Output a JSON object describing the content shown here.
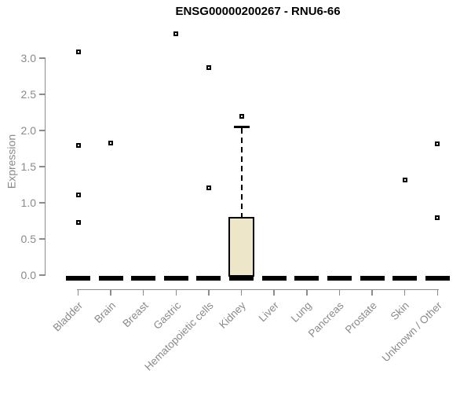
{
  "chart_data": {
    "type": "boxplot",
    "title": "ENSG00000200267 - RNU6-66",
    "xlabel": "",
    "ylabel": "Expression",
    "ylim": [
      0,
      3.4
    ],
    "yticks": [
      0.0,
      0.5,
      1.0,
      1.5,
      2.0,
      2.5,
      3.0
    ],
    "grid": "off",
    "legend": "none",
    "categories": [
      "Bladder",
      "Brain",
      "Breast",
      "Gastric",
      "Hematopoietic cells",
      "Kidney",
      "Liver",
      "Lung",
      "Pancreas",
      "Prostate",
      "Skin",
      "Unknown / Other"
    ],
    "boxes": [
      {
        "category": "Bladder",
        "median": 0,
        "q1": 0,
        "q3": 0,
        "whisker_low": 0,
        "whisker_high": 0,
        "outliers": [
          3.09,
          1.79,
          1.11,
          0.73
        ]
      },
      {
        "category": "Brain",
        "median": 0,
        "q1": 0,
        "q3": 0,
        "whisker_low": 0,
        "whisker_high": 0,
        "outliers": [
          1.83
        ]
      },
      {
        "category": "Breast",
        "median": 0,
        "q1": 0,
        "q3": 0,
        "whisker_low": 0,
        "whisker_high": 0,
        "outliers": []
      },
      {
        "category": "Gastric",
        "median": 0,
        "q1": 0,
        "q3": 0,
        "whisker_low": 0,
        "whisker_high": 0,
        "outliers": [
          3.34
        ]
      },
      {
        "category": "Hematopoietic cells",
        "median": 0,
        "q1": 0,
        "q3": 0,
        "whisker_low": 0,
        "whisker_high": 0,
        "outliers": [
          2.87,
          1.21
        ]
      },
      {
        "category": "Kidney",
        "median": 0,
        "q1": 0,
        "q3": 0.8,
        "whisker_low": 0,
        "whisker_high": 2.05,
        "outliers": [
          2.2
        ]
      },
      {
        "category": "Liver",
        "median": 0,
        "q1": 0,
        "q3": 0,
        "whisker_low": 0,
        "whisker_high": 0,
        "outliers": []
      },
      {
        "category": "Lung",
        "median": 0,
        "q1": 0,
        "q3": 0,
        "whisker_low": 0,
        "whisker_high": 0,
        "outliers": []
      },
      {
        "category": "Pancreas",
        "median": 0,
        "q1": 0,
        "q3": 0,
        "whisker_low": 0,
        "whisker_high": 0,
        "outliers": []
      },
      {
        "category": "Prostate",
        "median": 0,
        "q1": 0,
        "q3": 0,
        "whisker_low": 0,
        "whisker_high": 0,
        "outliers": []
      },
      {
        "category": "Skin",
        "median": 0,
        "q1": 0,
        "q3": 0,
        "whisker_low": 0,
        "whisker_high": 0,
        "outliers": [
          1.32
        ]
      },
      {
        "category": "Unknown / Other",
        "median": 0,
        "q1": 0,
        "q3": 0,
        "whisker_low": 0,
        "whisker_high": 0,
        "outliers": [
          1.81,
          0.79
        ]
      }
    ]
  },
  "colors": {
    "box_fill": "#EDE6C9",
    "data_marks": "#000000",
    "axis": "#8C8C8C",
    "labels": "#8A8A8A",
    "title": "#000000",
    "background": "#FFFFFF"
  }
}
